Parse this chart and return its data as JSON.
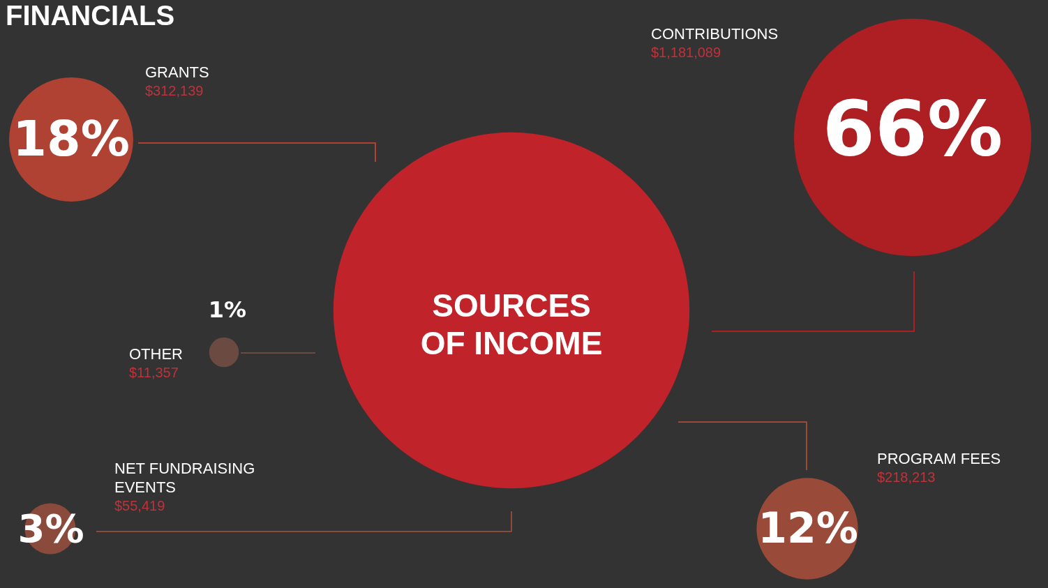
{
  "chart_data": {
    "type": "other",
    "title": "FINANCIALS",
    "subtitle": "SOURCES OF INCOME",
    "categories": [
      "CONTRIBUTIONS",
      "GRANTS",
      "OTHER",
      "NET FUNDRAISING EVENTS",
      "PROGRAM FEES"
    ],
    "values": [
      66,
      18,
      1,
      3,
      12
    ],
    "value_labels": [
      "66%",
      "18%",
      "1%",
      "3%",
      "12%"
    ],
    "annotations": [
      "$1,181,089",
      "$312,139",
      "$11,357",
      "$55,419",
      "$218,213"
    ],
    "colors": [
      "#ae1f23",
      "#b04233",
      "#6b4a42",
      "#8a4a3c",
      "#9a4a38"
    ]
  }
}
